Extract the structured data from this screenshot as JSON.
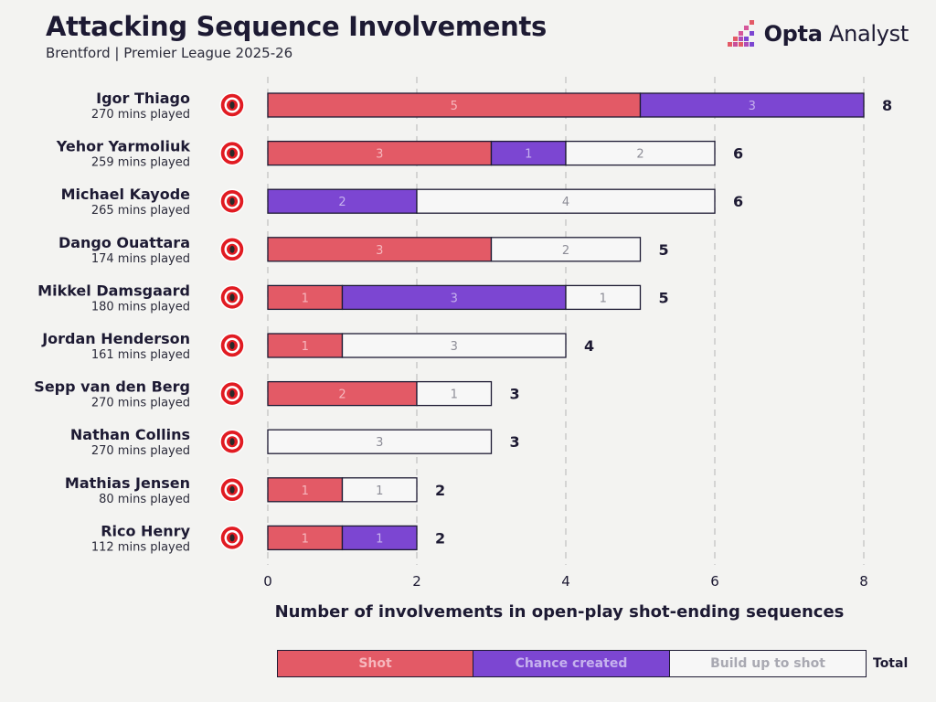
{
  "header": {
    "title": "Attacking Sequence Involvements",
    "subtitle": "Brentford | Premier League 2025-26"
  },
  "brand": {
    "name_bold": "Opta",
    "name_rest": " Analyst"
  },
  "colors": {
    "shot": "#e35a66",
    "chance": "#7c46d2",
    "build": "#f7f7f7",
    "ink": "#1d1a33",
    "grid": "#c9c9c9"
  },
  "legend": {
    "items": [
      "Shot",
      "Chance created",
      "Build up to shot"
    ],
    "total_label": "Total"
  },
  "chart_data": {
    "type": "bar",
    "orientation": "horizontal",
    "stacked": true,
    "xlabel": "Number of involvements in open-play shot-ending sequences",
    "xlim": [
      0,
      8
    ],
    "xticks": [
      0,
      2,
      4,
      6,
      8
    ],
    "grid": true,
    "categories": [
      "Igor Thiago",
      "Yehor Yarmoliuk",
      "Michael Kayode",
      "Dango Ouattara",
      "Mikkel Damsgaard",
      "Jordan Henderson",
      "Sepp van den Berg",
      "Nathan Collins",
      "Mathias Jensen",
      "Rico Henry"
    ],
    "minutes": [
      "270 mins played",
      "259 mins played",
      "265 mins played",
      "174 mins played",
      "180 mins played",
      "161 mins played",
      "270 mins played",
      "270 mins played",
      "80 mins played",
      "112 mins played"
    ],
    "series": [
      {
        "name": "Shot",
        "values": [
          5,
          3,
          0,
          3,
          1,
          1,
          2,
          0,
          1,
          1
        ]
      },
      {
        "name": "Chance created",
        "values": [
          3,
          1,
          2,
          0,
          3,
          0,
          0,
          0,
          0,
          1
        ]
      },
      {
        "name": "Build up to shot",
        "values": [
          0,
          2,
          4,
          2,
          1,
          3,
          1,
          3,
          1,
          0
        ]
      }
    ],
    "totals": [
      8,
      6,
      6,
      5,
      5,
      4,
      3,
      3,
      2,
      2
    ]
  }
}
